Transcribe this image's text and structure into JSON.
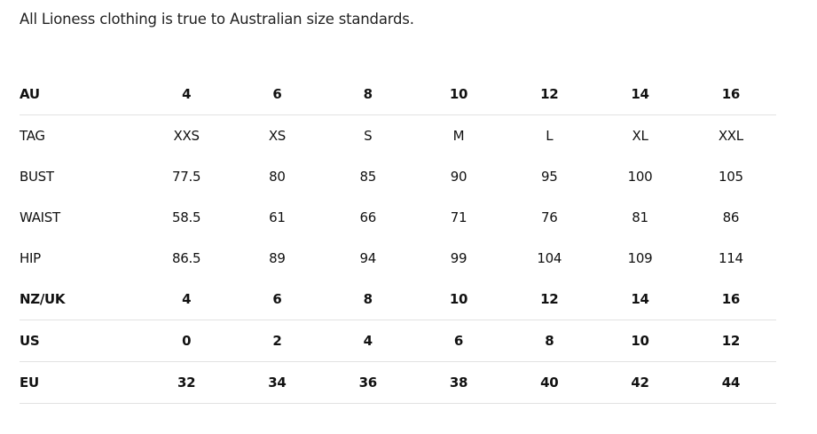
{
  "intro": "All Lioness clothing is true to Australian size standards.",
  "rows": [
    {
      "label": "AU",
      "bold": true,
      "line": true,
      "values": [
        "4",
        "6",
        "8",
        "10",
        "12",
        "14",
        "16"
      ]
    },
    {
      "label": "TAG",
      "bold": false,
      "line": false,
      "values": [
        "XXS",
        "XS",
        "S",
        "M",
        "L",
        "XL",
        "XXL"
      ]
    },
    {
      "label": "BUST",
      "bold": false,
      "line": false,
      "values": [
        "77.5",
        "80",
        "85",
        "90",
        "95",
        "100",
        "105"
      ]
    },
    {
      "label": "WAIST",
      "bold": false,
      "line": false,
      "values": [
        "58.5",
        "61",
        "66",
        "71",
        "76",
        "81",
        "86"
      ]
    },
    {
      "label": "HIP",
      "bold": false,
      "line": false,
      "values": [
        "86.5",
        "89",
        "94",
        "99",
        "104",
        "109",
        "114"
      ]
    },
    {
      "label": "NZ/UK",
      "bold": true,
      "line": true,
      "values": [
        "4",
        "6",
        "8",
        "10",
        "12",
        "14",
        "16"
      ]
    },
    {
      "label": "US",
      "bold": true,
      "line": true,
      "values": [
        "0",
        "2",
        "4",
        "6",
        "8",
        "10",
        "12"
      ]
    },
    {
      "label": "EU",
      "bold": true,
      "line": true,
      "values": [
        "32",
        "34",
        "36",
        "38",
        "40",
        "42",
        "44"
      ]
    }
  ]
}
